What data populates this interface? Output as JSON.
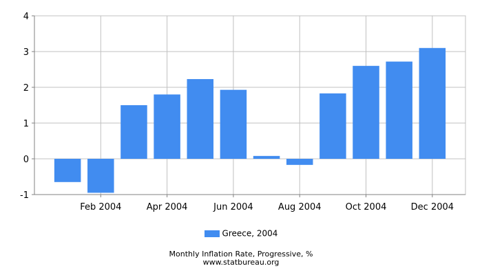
{
  "chart_data": {
    "type": "bar",
    "categories": [
      "Jan 2004",
      "Feb 2004",
      "Mar 2004",
      "Apr 2004",
      "May 2004",
      "Jun 2004",
      "Jul 2004",
      "Aug 2004",
      "Sep 2004",
      "Oct 2004",
      "Nov 2004",
      "Dec 2004"
    ],
    "x_tick_labels": [
      "Feb 2004",
      "Apr 2004",
      "Jun 2004",
      "Aug 2004",
      "Oct 2004",
      "Dec 2004"
    ],
    "series": [
      {
        "name": "Greece, 2004",
        "values": [
          -0.65,
          -0.95,
          1.5,
          1.8,
          2.23,
          1.93,
          0.08,
          -0.17,
          1.83,
          2.6,
          2.72,
          3.1
        ]
      }
    ],
    "ylim": [
      -1,
      4
    ],
    "y_ticks": [
      -1,
      0,
      1,
      2,
      3,
      4
    ],
    "grid": true,
    "legend": "bottom-center",
    "colors": {
      "bar": "#418cf0",
      "grid": "#c0c0c0",
      "axis": "#808080"
    }
  },
  "footer": {
    "caption": "Monthly Inflation Rate, Progressive, %",
    "source": "www.statbureau.org"
  }
}
